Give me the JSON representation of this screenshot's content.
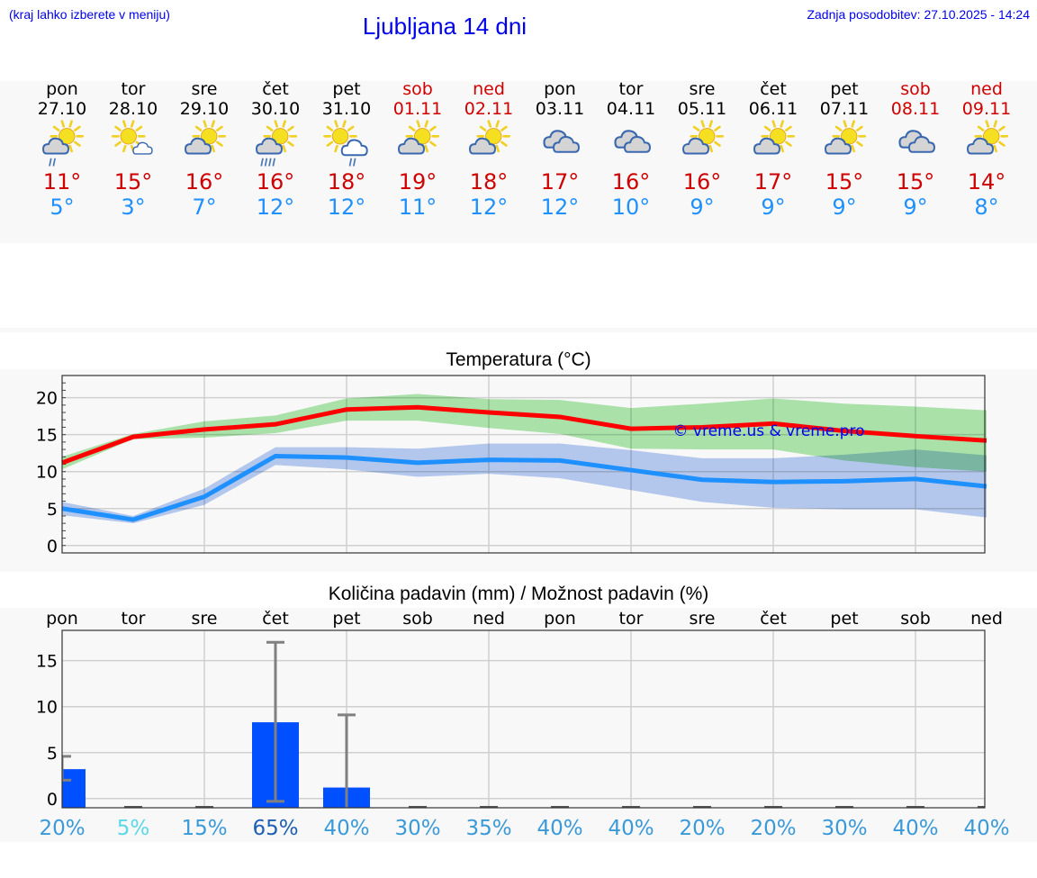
{
  "header": {
    "hint": "(kraj lahko izberete v meniju)",
    "title": "Ljubljana 14 dni",
    "updated": "Zadnja posodobitev: 27.10.2025 - 14:24"
  },
  "colors": {
    "weekday": "#000000",
    "weekend": "#d00000",
    "tmax": "#d00000",
    "tmin": "#1e90ff",
    "link": "#0000ee"
  },
  "days": [
    {
      "name": "pon",
      "date": "27.10",
      "weekend": false,
      "icon": "partly-cloudy-rain",
      "tmax": "11°",
      "tmin": "5°"
    },
    {
      "name": "tor",
      "date": "28.10",
      "weekend": false,
      "icon": "sun-small-cloud",
      "tmax": "15°",
      "tmin": "3°"
    },
    {
      "name": "sre",
      "date": "29.10",
      "weekend": false,
      "icon": "partly-cloudy",
      "tmax": "16°",
      "tmin": "7°"
    },
    {
      "name": "čet",
      "date": "30.10",
      "weekend": false,
      "icon": "partly-cloudy-heavy-rain",
      "tmax": "16°",
      "tmin": "12°"
    },
    {
      "name": "pet",
      "date": "31.10",
      "weekend": false,
      "icon": "sun-cloud-rain",
      "tmax": "18°",
      "tmin": "12°"
    },
    {
      "name": "sob",
      "date": "01.11",
      "weekend": true,
      "icon": "partly-cloudy",
      "tmax": "19°",
      "tmin": "11°"
    },
    {
      "name": "ned",
      "date": "02.11",
      "weekend": true,
      "icon": "partly-cloudy",
      "tmax": "18°",
      "tmin": "12°"
    },
    {
      "name": "pon",
      "date": "03.11",
      "weekend": false,
      "icon": "cloudy",
      "tmax": "17°",
      "tmin": "12°"
    },
    {
      "name": "tor",
      "date": "04.11",
      "weekend": false,
      "icon": "cloudy",
      "tmax": "16°",
      "tmin": "10°"
    },
    {
      "name": "sre",
      "date": "05.11",
      "weekend": false,
      "icon": "partly-cloudy",
      "tmax": "16°",
      "tmin": "9°"
    },
    {
      "name": "čet",
      "date": "06.11",
      "weekend": false,
      "icon": "partly-cloudy",
      "tmax": "17°",
      "tmin": "9°"
    },
    {
      "name": "pet",
      "date": "07.11",
      "weekend": false,
      "icon": "partly-cloudy",
      "tmax": "15°",
      "tmin": "9°"
    },
    {
      "name": "sob",
      "date": "08.11",
      "weekend": true,
      "icon": "cloudy",
      "tmax": "15°",
      "tmin": "9°"
    },
    {
      "name": "ned",
      "date": "09.11",
      "weekend": true,
      "icon": "partly-cloudy",
      "tmax": "14°",
      "tmin": "8°"
    }
  ],
  "chart_data": [
    {
      "type": "line",
      "title": "Temperatura (°C)",
      "watermark": "© vreme.us & vreme.pro",
      "x": [
        "27.10",
        "28.10",
        "29.10",
        "30.10",
        "31.10",
        "01.11",
        "02.11",
        "03.11",
        "04.11",
        "05.11",
        "06.11",
        "07.11",
        "08.11",
        "09.11"
      ],
      "ylim": [
        -1,
        23
      ],
      "yticks": [
        "0",
        "5",
        "10",
        "15",
        "20"
      ],
      "grid": true,
      "series": [
        {
          "role": "max",
          "color": "#ff0000",
          "band_color": "#aee8ae",
          "values": [
            11.2,
            14.7,
            15.7,
            16.4,
            18.4,
            18.7,
            18.0,
            17.4,
            15.8,
            16.0,
            16.5,
            15.5,
            14.8,
            14.2
          ],
          "low": [
            10.3,
            14.4,
            14.6,
            15.2,
            16.9,
            16.9,
            15.9,
            15.1,
            13.1,
            13.0,
            13.0,
            11.5,
            10.6,
            10.0
          ],
          "high": [
            12.0,
            15.1,
            16.8,
            17.6,
            19.9,
            20.5,
            19.8,
            19.7,
            18.6,
            19.2,
            19.9,
            19.2,
            18.8,
            18.3
          ]
        },
        {
          "role": "min",
          "color": "#1e90ff",
          "band_color": "#b0c8f2",
          "values": [
            5.0,
            3.5,
            6.6,
            12.1,
            11.9,
            11.2,
            11.6,
            11.5,
            10.2,
            8.9,
            8.6,
            8.7,
            9.0,
            8.0
          ],
          "low": [
            4.1,
            3.0,
            5.5,
            10.9,
            10.3,
            9.3,
            9.7,
            9.1,
            7.5,
            5.9,
            5.1,
            4.9,
            4.9,
            3.8
          ],
          "high": [
            5.9,
            4.0,
            7.7,
            13.3,
            13.3,
            13.1,
            13.8,
            13.8,
            12.9,
            11.8,
            11.8,
            12.3,
            13.0,
            12.2
          ]
        }
      ]
    },
    {
      "type": "bar",
      "title": "Količina padavin (mm) / Možnost padavin (%)",
      "categories": [
        "pon",
        "tor",
        "sre",
        "čet",
        "pet",
        "sob",
        "ned",
        "pon",
        "tor",
        "sre",
        "čet",
        "pet",
        "sob",
        "ned"
      ],
      "values": [
        3.2,
        0,
        0,
        8.3,
        1.2,
        0,
        0,
        0,
        0,
        0,
        0,
        0,
        0,
        0
      ],
      "error_low": [
        2.0,
        0,
        0,
        -0.3,
        -1,
        0,
        0,
        0,
        0,
        0,
        0,
        0,
        0,
        0
      ],
      "error_high": [
        4.6,
        0,
        0,
        17.0,
        9.1,
        0,
        0,
        0,
        0,
        0,
        0,
        0,
        0,
        0
      ],
      "probability": [
        "20%",
        "5%",
        "15%",
        "65%",
        "40%",
        "30%",
        "35%",
        "40%",
        "40%",
        "20%",
        "20%",
        "30%",
        "40%",
        "40%"
      ],
      "probability_colors": [
        "#3a9ad9",
        "#5ad8e8",
        "#3a9ad9",
        "#1e5fb4",
        "#3a9ad9",
        "#3a9ad9",
        "#3a9ad9",
        "#3a9ad9",
        "#3a9ad9",
        "#3a9ad9",
        "#3a9ad9",
        "#3a9ad9",
        "#3a9ad9",
        "#3a9ad9"
      ],
      "ylim": [
        -1,
        18.3
      ],
      "yticks": [
        "0",
        "5",
        "10",
        "15"
      ],
      "bar_color": "#0050ff",
      "error_color": "#808080",
      "grid": true
    }
  ]
}
